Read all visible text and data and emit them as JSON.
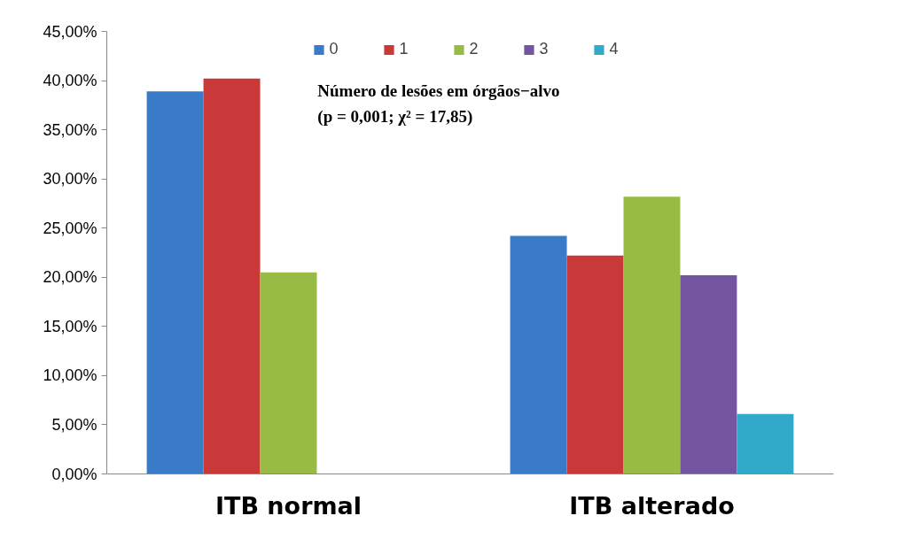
{
  "chart_data": {
    "type": "bar",
    "categories": [
      "ITB normal",
      "ITB alterado"
    ],
    "series": [
      {
        "name": "0",
        "color": "#3a7bc8",
        "values": [
          38.9,
          24.2
        ]
      },
      {
        "name": "1",
        "color": "#c9393a",
        "values": [
          40.2,
          22.2
        ]
      },
      {
        "name": "2",
        "color": "#98bb45",
        "values": [
          20.5,
          28.2
        ]
      },
      {
        "name": "3",
        "color": "#7456a0",
        "values": [
          null,
          20.2
        ]
      },
      {
        "name": "4",
        "color": "#31a9c9",
        "values": [
          null,
          6.1
        ]
      }
    ],
    "ylim": [
      0,
      45
    ],
    "yticks": [
      {
        "value": 0,
        "label": "0,00%"
      },
      {
        "value": 5,
        "label": "5,00%"
      },
      {
        "value": 10,
        "label": "10,00%"
      },
      {
        "value": 15,
        "label": "15,00%"
      },
      {
        "value": 20,
        "label": "20,00%"
      },
      {
        "value": 25,
        "label": "25,00%"
      },
      {
        "value": 30,
        "label": "30,00%"
      },
      {
        "value": 35,
        "label": "35,00%"
      },
      {
        "value": 40,
        "label": "40,00%"
      },
      {
        "value": 45,
        "label": "45,00%"
      }
    ],
    "annotations": [
      "Número de lesões em órgãos−alvo",
      "(p = 0,001; χ² = 17,85)"
    ],
    "grid": false,
    "legend": "top"
  }
}
